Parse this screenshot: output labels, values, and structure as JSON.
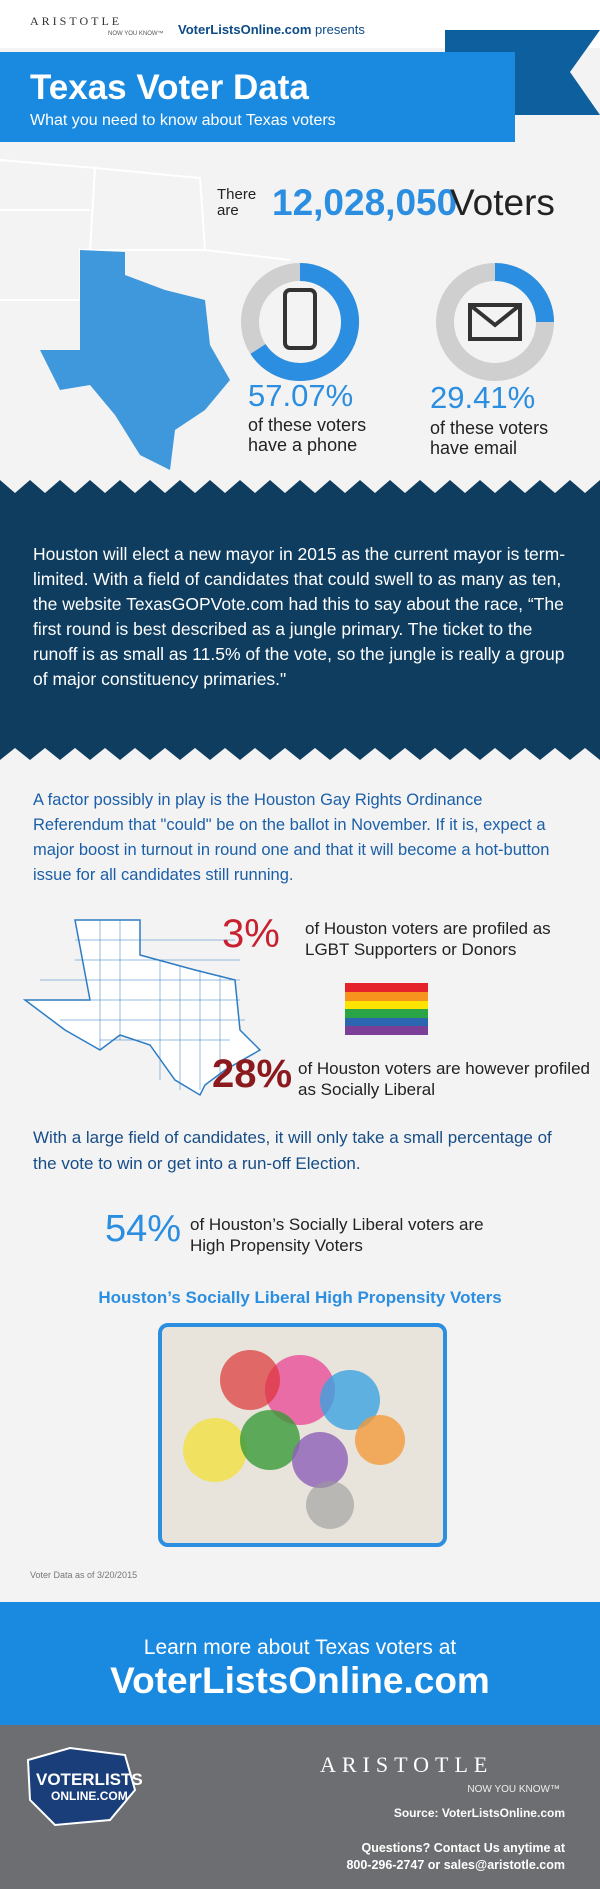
{
  "header": {
    "brand": "ARISTOTLE",
    "tagline": "NOW YOU KNOW™",
    "presenter": "VoterListsOnline.com",
    "presents": "presents",
    "title": "Texas Voter Data",
    "subtitle": "What you need to know about Texas voters"
  },
  "voters": {
    "prefix_1": "There",
    "prefix_2": "are",
    "count": "12,028,050",
    "suffix": "Voters"
  },
  "phone": {
    "percent": "57.07%",
    "line_1": "of these voters",
    "line_2": "have a phone"
  },
  "email": {
    "percent": "29.41%",
    "line_1": "of these voters",
    "line_2": "have email"
  },
  "quote_paragraph": "Houston will elect a new mayor in 2015 as the current mayor is term-limited. With a field of candidates that could swell to as many as ten, the website TexasGOPVote.com had this to say about the race, “The first round is best described as a jungle primary. The ticket to the runoff is as small as 11.5% of the vote, so the jungle is really a group of major constituency primaries.\"",
  "referendum_paragraph": "A factor possibly in play is the Houston Gay Rights Ordinance Referendum that \"could\" be on the ballot in November. If it is, expect a major boost in turnout in round one and that it will become a hot-button issue for all candidates still running.",
  "lgbt": {
    "percent": "3%",
    "text": "of Houston voters are profiled as LGBT Supporters or Donors"
  },
  "liberal": {
    "percent": "28%",
    "text": "of Houston voters are however profiled as Socially Liberal"
  },
  "field_paragraph": "With a large field of candidates, it will only take a small percentage of the vote to win or get into a run-off Election.",
  "propensity": {
    "percent": "54%",
    "text": "of Houston’s Socially Liberal voters are High Propensity Voters"
  },
  "map_title": "Houston’s Socially Liberal High Propensity Voters",
  "note": "Voter Data as of 3/20/2015",
  "cta": {
    "line_1": "Learn more about Texas voters at",
    "line_2": "VoterListsOnline.com"
  },
  "footer": {
    "logo_1": "VOTERLISTS",
    "logo_2": "ONLINE.COM",
    "brand": "ARISTOTLE",
    "tagline": "NOW YOU KNOW™",
    "source": "Source: VoterListsOnline.com",
    "contact_1": "Questions? Contact Us anytime at",
    "contact_2": "800-296-2747 or sales@aristotle.com"
  }
}
